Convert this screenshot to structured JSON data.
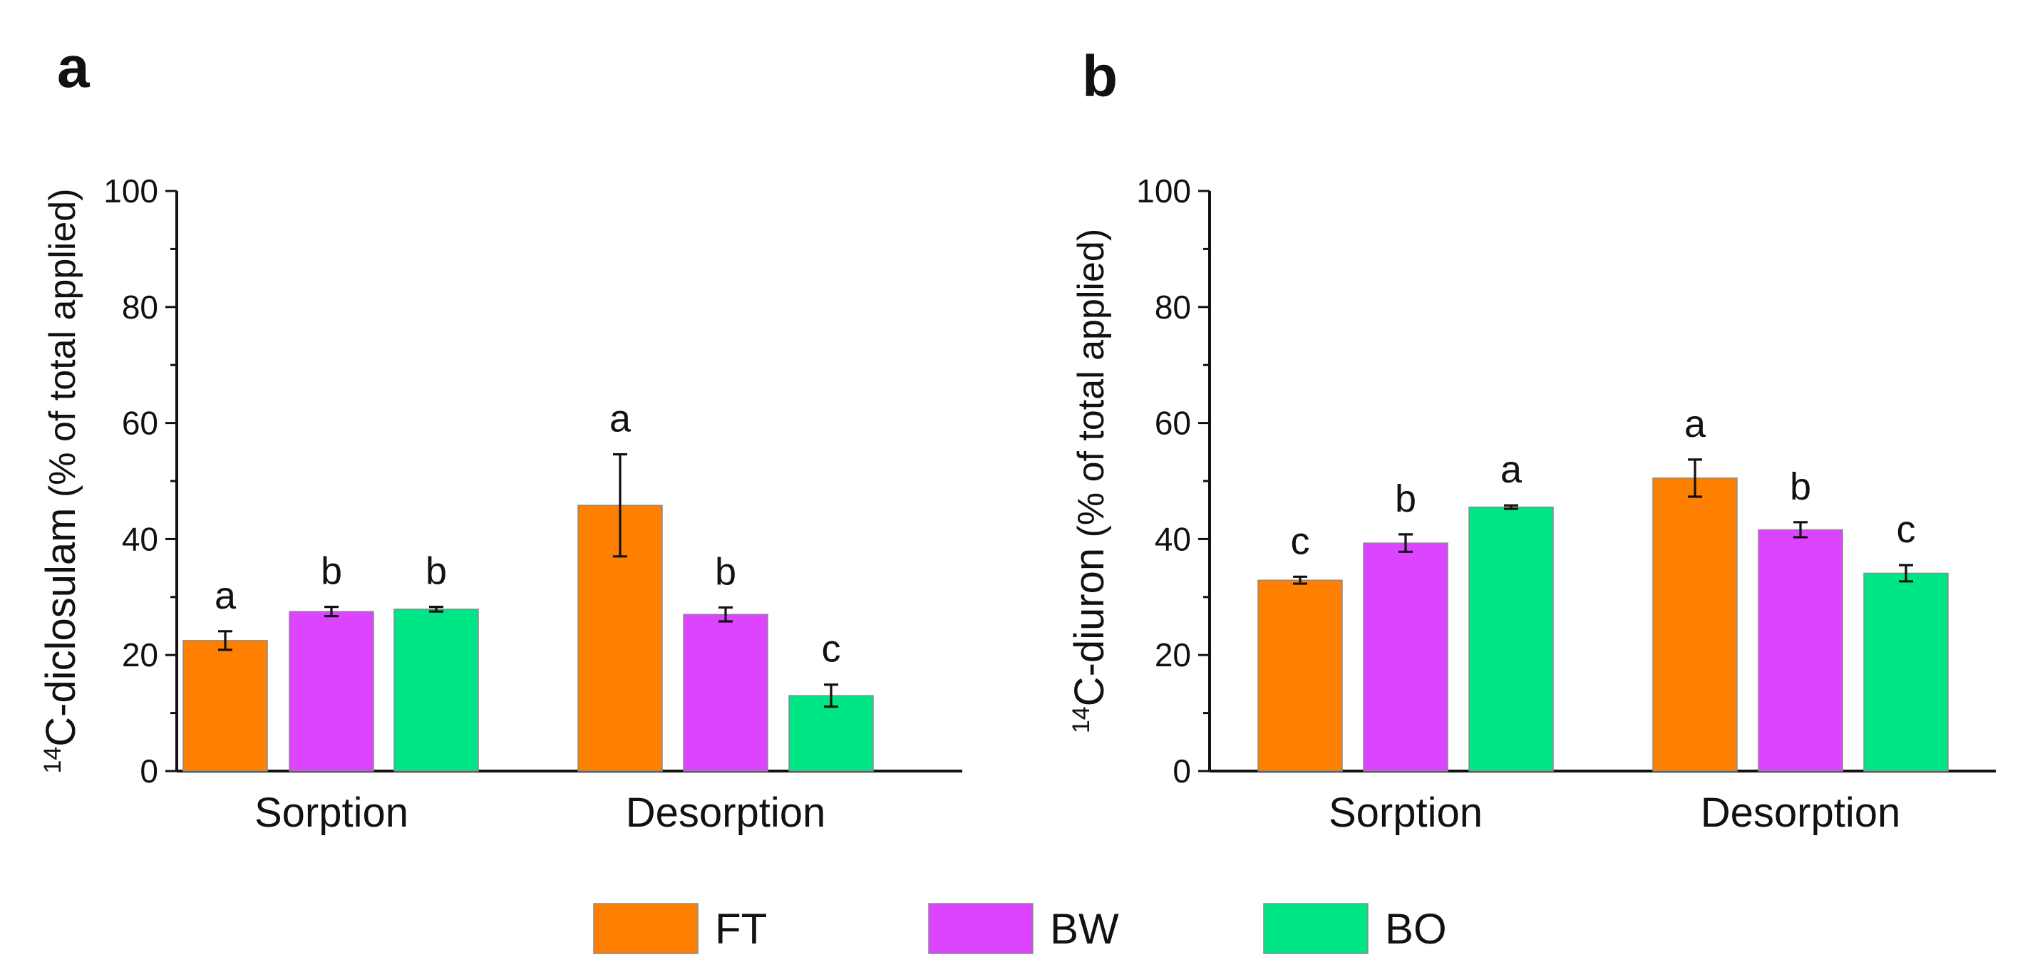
{
  "chart_data": [
    {
      "type": "bar",
      "panel_label": "a",
      "categories": [
        "Sorption",
        "Desorption"
      ],
      "ylabel_sup": "14",
      "ylabel_main": "C-diclosulam",
      "ylabel_suffix": " (% of total applied)",
      "ylim": [
        0,
        100
      ],
      "yticks": [
        0,
        20,
        40,
        60,
        80,
        100
      ],
      "series": [
        {
          "name": "FT",
          "values": [
            22.5,
            45.8
          ],
          "errors": [
            1.6,
            8.8
          ],
          "letters": [
            "a",
            "a"
          ]
        },
        {
          "name": "BW",
          "values": [
            27.5,
            27.0
          ],
          "errors": [
            0.8,
            1.2
          ],
          "letters": [
            "b",
            "b"
          ]
        },
        {
          "name": "BO",
          "values": [
            27.9,
            13.0
          ],
          "errors": [
            0.4,
            1.9
          ],
          "letters": [
            "b",
            "c"
          ]
        }
      ]
    },
    {
      "type": "bar",
      "panel_label": "b",
      "categories": [
        "Sorption",
        "Desorption"
      ],
      "ylabel_sup": "14",
      "ylabel_main": "C-diuron",
      "ylabel_suffix": " (% of total applied)",
      "ylim": [
        0,
        100
      ],
      "yticks": [
        0,
        20,
        40,
        60,
        80,
        100
      ],
      "series": [
        {
          "name": "FT",
          "values": [
            32.9,
            50.5
          ],
          "errors": [
            0.6,
            3.2
          ],
          "letters": [
            "c",
            "a"
          ]
        },
        {
          "name": "BW",
          "values": [
            39.3,
            41.6
          ],
          "errors": [
            1.5,
            1.3
          ],
          "letters": [
            "b",
            "b"
          ]
        },
        {
          "name": "BO",
          "values": [
            45.5,
            34.1
          ],
          "errors": [
            0.3,
            1.4
          ],
          "letters": [
            "a",
            "c"
          ]
        }
      ]
    }
  ],
  "legend": {
    "placement": "bottom-center",
    "items": [
      {
        "name": "FT",
        "color": "#ff8000"
      },
      {
        "name": "BW",
        "color": "#dd44ff"
      },
      {
        "name": "BO",
        "color": "#00e686"
      }
    ]
  },
  "colors": {
    "FT": "#ff8000",
    "BW": "#dd44ff",
    "BO": "#00e686",
    "bar_edge": "#8a8a8a"
  }
}
